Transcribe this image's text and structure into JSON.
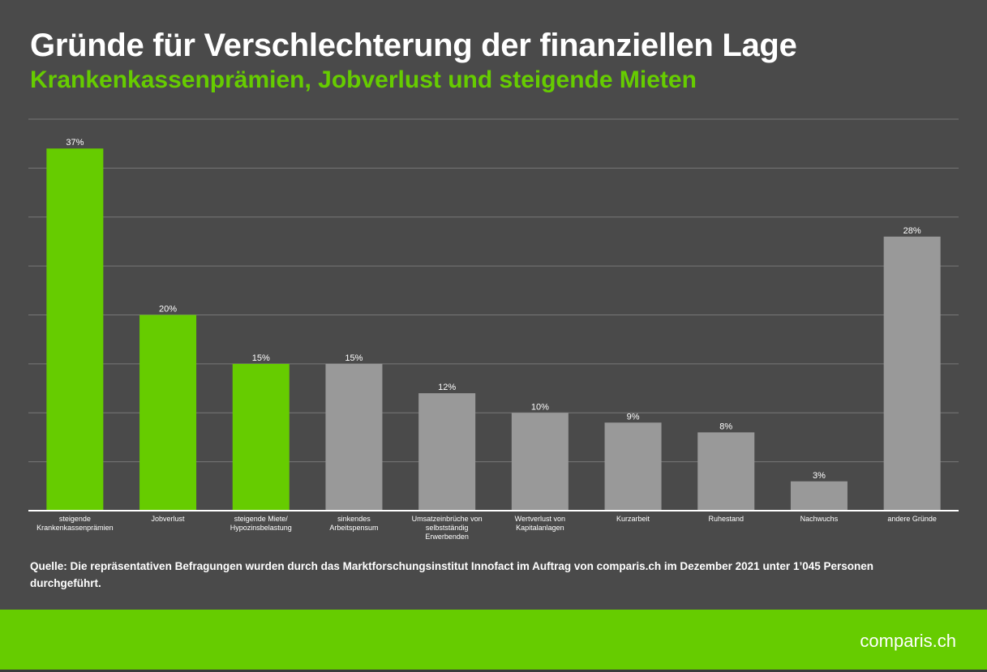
{
  "title": "Gründe für Verschlechterung der finanziellen Lage",
  "subtitle": "Krankenkassenprämien, Jobverlust und steigende Mieten",
  "source": "Quelle: Die repräsentativen Befragungen wurden durch das Marktforschungsinstitut Innofact im Auftrag von comparis.ch im Dezember 2021 unter 1’045 Personen durchgeführt.",
  "logo": "comparis.ch",
  "colors": {
    "background": "#4a4a4a",
    "highlight": "#66cc00",
    "other": "#999999"
  },
  "chart_data": {
    "type": "bar",
    "categories": [
      [
        "steigende",
        "Krankenkassenprämien"
      ],
      [
        "Jobverlust"
      ],
      [
        "steigende Miete/",
        "Hypozinsbelastung"
      ],
      [
        "sinkendes",
        "Arbeitspensum"
      ],
      [
        "Umsatzeinbrüche von",
        "selbstständig",
        "Erwerbenden"
      ],
      [
        "Wertverlust von",
        "Kapitalanlagen"
      ],
      [
        "Kurzarbeit"
      ],
      [
        "Ruhestand"
      ],
      [
        "Nachwuchs"
      ],
      [
        "andere Gründe"
      ]
    ],
    "values": [
      37,
      20,
      15,
      15,
      12,
      10,
      9,
      8,
      3,
      28
    ],
    "data_labels": [
      "37%",
      "20%",
      "15%",
      "15%",
      "12%",
      "10%",
      "9%",
      "8%",
      "3%",
      "28%"
    ],
    "highlighted": [
      true,
      true,
      true,
      false,
      false,
      false,
      false,
      false,
      false,
      false
    ],
    "ylim": [
      0,
      40
    ],
    "grid": true,
    "grid_step": 5,
    "xlabel": "",
    "ylabel": ""
  }
}
